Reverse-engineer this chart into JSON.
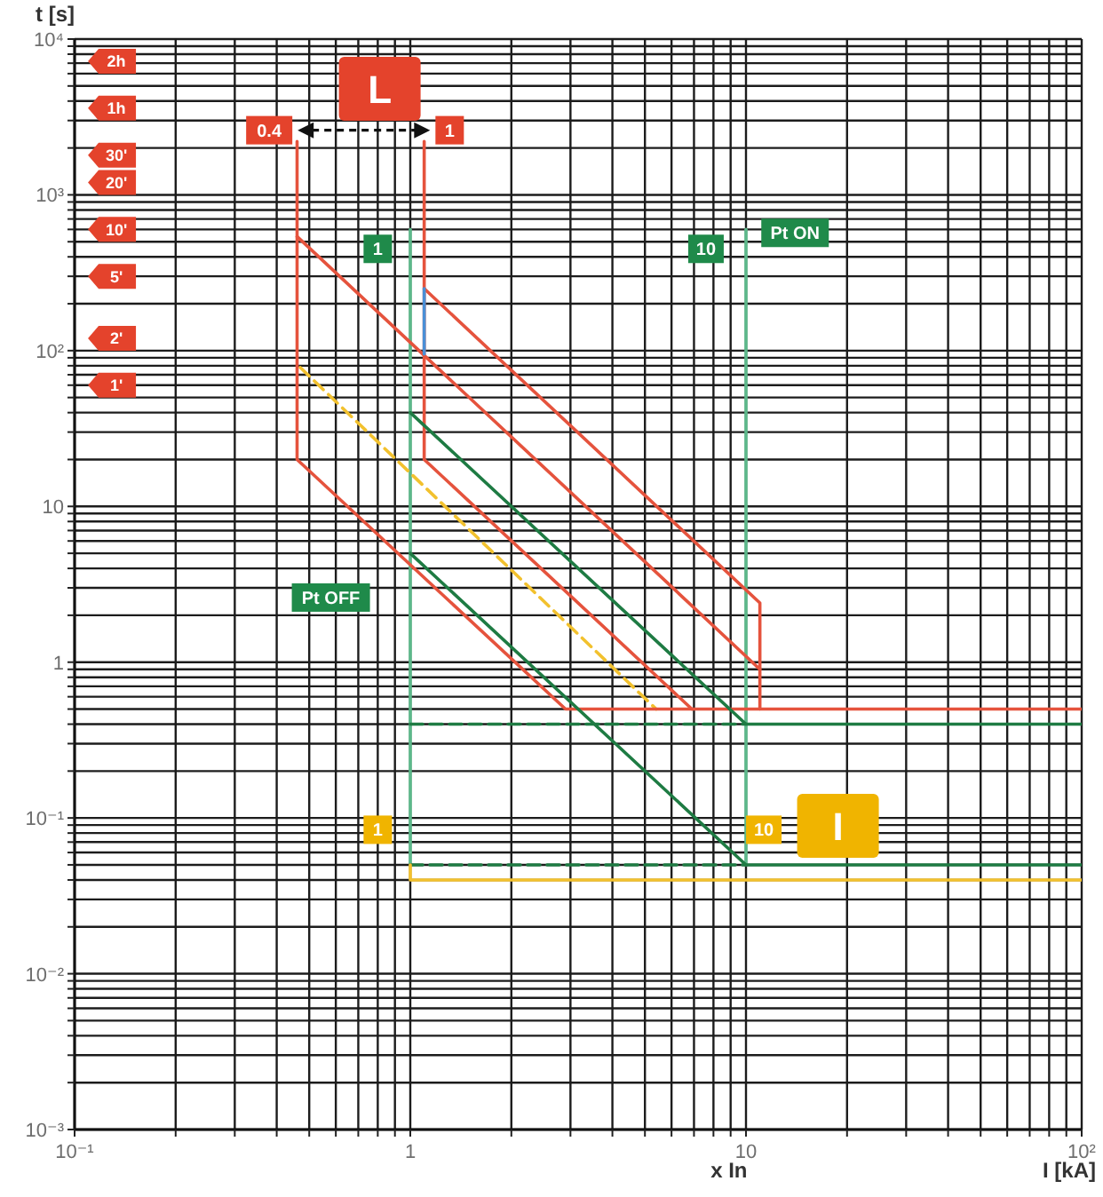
{
  "chart_data": {
    "type": "line",
    "xlabel": "I [kA]",
    "ylabel": "t [s]",
    "log": "xy",
    "grid": true,
    "marker": "none",
    "line_style": "solid",
    "xlim": [
      0.1,
      100
    ],
    "ylim": [
      0.001,
      10000
    ],
    "xticks": [
      {
        "value": 0.1,
        "label": "10⁻¹"
      },
      {
        "value": 0.2,
        "label": null
      },
      {
        "value": 0.3,
        "label": null
      },
      {
        "value": 0.4,
        "label": null
      },
      {
        "value": 0.5,
        "label": null
      },
      {
        "value": 0.6,
        "label": null
      },
      {
        "value": 0.7,
        "label": null
      },
      {
        "value": 0.8,
        "label": null
      },
      {
        "value": 0.9,
        "label": null
      },
      1,
      {
        "value": 2,
        "label": null
      },
      {
        "value": 3,
        "label": null
      },
      {
        "value": 4,
        "label": null
      },
      {
        "value": 5,
        "label": null
      },
      {
        "value": 6,
        "label": null
      },
      {
        "value": 7,
        "label": null
      },
      {
        "value": 8,
        "label": null
      },
      {
        "value": 9,
        "label": null
      },
      10,
      {
        "value": 20,
        "label": null
      },
      {
        "value": 30,
        "label": null
      },
      {
        "value": 40,
        "label": null
      },
      {
        "value": 50,
        "label": null
      },
      {
        "value": 60,
        "label": null
      },
      {
        "value": 70,
        "label": null
      },
      {
        "value": 80,
        "label": null
      },
      {
        "value": 90,
        "label": null
      },
      {
        "value": 100,
        "label": "10²"
      }
    ],
    "yticks": [
      {
        "value": 0.001,
        "label": "10⁻³"
      },
      {
        "value": 0.002,
        "label": null
      },
      {
        "value": 0.003,
        "label": null
      },
      {
        "value": 0.004,
        "label": null
      },
      {
        "value": 0.005,
        "label": null
      },
      {
        "value": 0.006,
        "label": null
      },
      {
        "value": 0.007,
        "label": null
      },
      {
        "value": 0.008,
        "label": null
      },
      {
        "value": 0.009,
        "label": null
      },
      {
        "value": 0.01,
        "label": "10⁻²"
      },
      {
        "value": 0.02,
        "label": null
      },
      {
        "value": 0.03,
        "label": null
      },
      {
        "value": 0.04,
        "label": null
      },
      {
        "value": 0.05,
        "label": null
      },
      {
        "value": 0.06,
        "label": null
      },
      {
        "value": 0.07,
        "label": null
      },
      {
        "value": 0.08,
        "label": null
      },
      {
        "value": 0.09,
        "label": null
      },
      {
        "value": 0.1,
        "label": "10⁻¹"
      },
      {
        "value": 0.2,
        "label": null
      },
      {
        "value": 0.3,
        "label": null
      },
      {
        "value": 0.4,
        "label": null
      },
      {
        "value": 0.5,
        "label": null
      },
      {
        "value": 0.6,
        "label": null
      },
      {
        "value": 0.7,
        "label": null
      },
      {
        "value": 0.8,
        "label": null
      },
      {
        "value": 0.9,
        "label": null
      },
      1,
      {
        "value": 2,
        "label": null
      },
      {
        "value": 3,
        "label": null
      },
      {
        "value": 4,
        "label": null
      },
      {
        "value": 5,
        "label": null
      },
      {
        "value": 6,
        "label": null
      },
      {
        "value": 7,
        "label": null
      },
      {
        "value": 8,
        "label": null
      },
      {
        "value": 9,
        "label": null
      },
      10,
      {
        "value": 20,
        "label": null
      },
      {
        "value": 30,
        "label": null
      },
      {
        "value": 40,
        "label": null
      },
      {
        "value": 50,
        "label": null
      },
      {
        "value": 60,
        "label": null
      },
      {
        "value": 70,
        "label": null
      },
      {
        "value": 80,
        "label": null
      },
      {
        "value": 90,
        "label": null
      },
      {
        "value": 100,
        "label": "10²"
      },
      {
        "value": 200,
        "label": null
      },
      {
        "value": 300,
        "label": null
      },
      {
        "value": 400,
        "label": null
      },
      {
        "value": 500,
        "label": null
      },
      {
        "value": 600,
        "label": null
      },
      {
        "value": 700,
        "label": null
      },
      {
        "value": 800,
        "label": null
      },
      {
        "value": 900,
        "label": null
      },
      {
        "value": 1000,
        "label": "10³"
      },
      {
        "value": 2000,
        "label": null
      },
      {
        "value": 3000,
        "label": null
      },
      {
        "value": 4000,
        "label": null
      },
      {
        "value": 5000,
        "label": null
      },
      {
        "value": 6000,
        "label": null
      },
      {
        "value": 7000,
        "label": null
      },
      {
        "value": 8000,
        "label": null
      },
      {
        "value": 9000,
        "label": null
      },
      {
        "value": 10000,
        "label": "10⁴"
      }
    ],
    "series": [
      {
        "color": "#5cb88a",
        "x": [
          1,
          1
        ],
        "values": [
          600,
          0.05
        ]
      },
      {
        "color": "#5cb88a",
        "x": [
          10,
          10
        ],
        "values": [
          600,
          0.05
        ]
      },
      {
        "color": "#1e7b43",
        "x": [
          1,
          10
        ],
        "values": [
          0.4,
          0.4
        ],
        "line_style": "dashed"
      },
      {
        "color": "#1e7b43",
        "x": [
          1,
          10
        ],
        "values": [
          0.05,
          0.05
        ],
        "line_style": "dashed"
      },
      {
        "color": "#f2c12e",
        "x": [
          0.47,
          5.4
        ],
        "values": [
          78,
          0.5
        ],
        "line_style": "dashed"
      },
      {
        "color": "#f2c12e",
        "x": [
          1,
          1,
          100
        ],
        "values": [
          0.05,
          0.04,
          0.04
        ]
      },
      {
        "color": "#e5533d",
        "x": [
          0.46,
          0.46,
          2.9,
          100
        ],
        "values": [
          2200,
          20,
          0.5,
          0.5
        ]
      },
      {
        "color": "#e5533d",
        "x": [
          0.46,
          11
        ],
        "values": [
          540,
          0.9
        ]
      },
      {
        "color": "#e5533d",
        "x": [
          1.1,
          1.1,
          6.9
        ],
        "values": [
          2200,
          20,
          0.5
        ]
      },
      {
        "color": "#e5533d",
        "x": [
          1.1,
          11,
          11
        ],
        "values": [
          250,
          2.4,
          0.5
        ]
      },
      {
        "color": "#4a8fd6",
        "x": [
          1.1,
          1.1
        ],
        "values": [
          250,
          95
        ]
      },
      {
        "color": "#1e7b43",
        "x": [
          1,
          10,
          100
        ],
        "values": [
          40,
          0.4,
          0.4
        ]
      },
      {
        "color": "#1e7b43",
        "x": [
          1,
          10,
          100
        ],
        "values": [
          5,
          0.05,
          0.05
        ]
      }
    ],
    "annotations": [
      "L",
      {
        "text": "0.4",
        "x": 0.38,
        "y": 2600
      },
      {
        "text": "1",
        "x": 1.31,
        "y": 2600
      },
      {
        "text": "1",
        "x": 0.8,
        "y": 450
      },
      {
        "text": "10",
        "x": 7.6,
        "y": 450
      },
      {
        "text": "Pt ON",
        "x": 14,
        "y": 570
      },
      {
        "text": "Pt OFF",
        "x": 0.58,
        "y": 2.6
      },
      {
        "text": "1",
        "x": 0.8,
        "y": 0.084
      },
      {
        "text": "10",
        "x": 11.3,
        "y": 0.084
      },
      "I",
      {
        "text": "2h",
        "x": 0.13,
        "y": 7200
      },
      {
        "text": "1h",
        "x": 0.13,
        "y": 3600
      },
      {
        "text": "30'",
        "x": 0.13,
        "y": 1800
      },
      {
        "text": "20'",
        "x": 0.13,
        "y": 1200
      },
      {
        "text": "10'",
        "x": 0.13,
        "y": 600
      },
      {
        "text": "5'",
        "x": 0.13,
        "y": 300
      },
      {
        "text": "2'",
        "x": 0.13,
        "y": 120
      },
      {
        "text": "1'",
        "x": 0.13,
        "y": 60
      },
      "x In"
    ]
  }
}
